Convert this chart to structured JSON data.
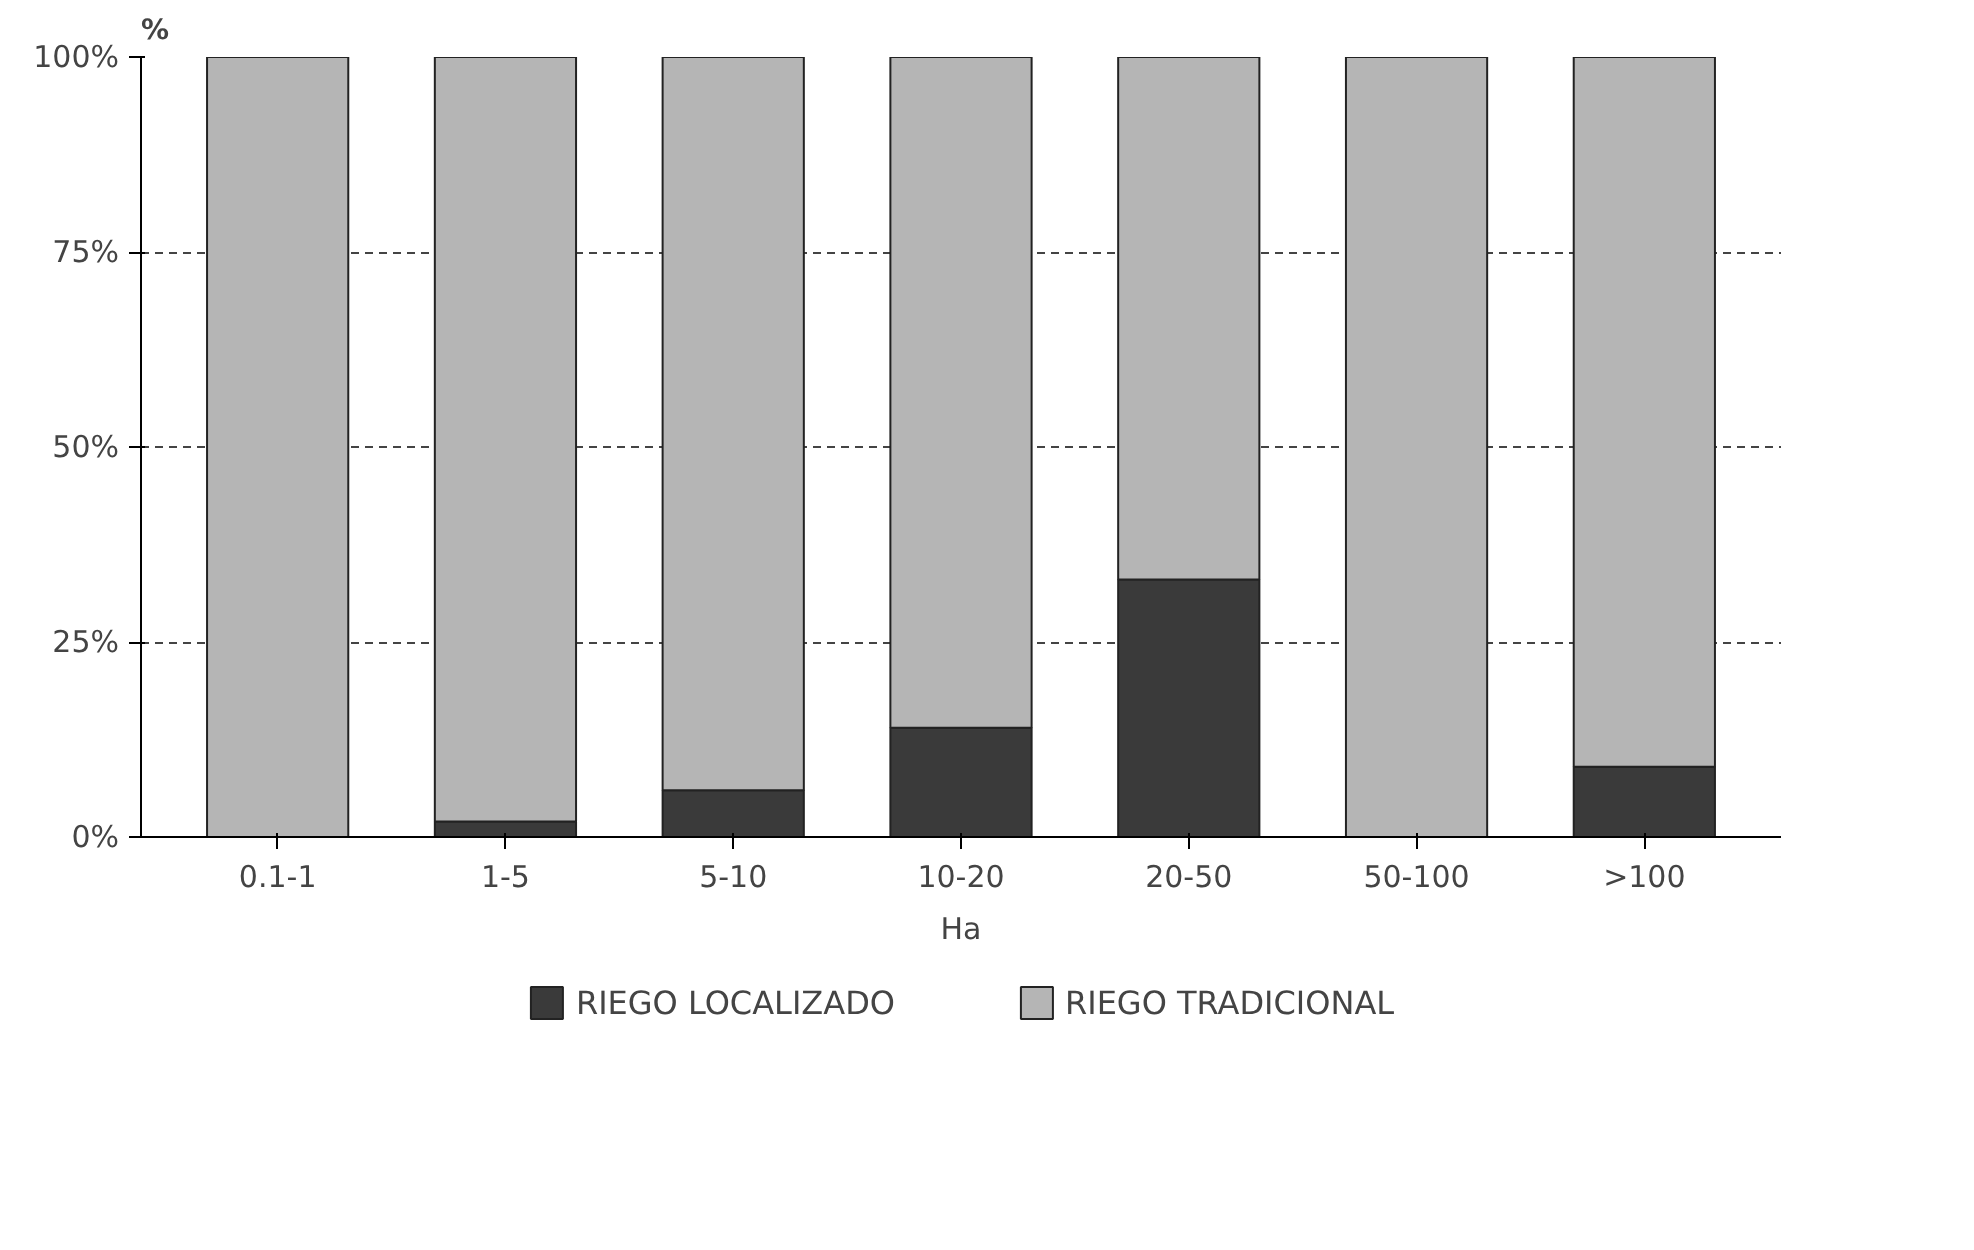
{
  "chart_data": {
    "type": "bar",
    "stacked": true,
    "ylabel": "%",
    "xlabel": "Ha",
    "categories": [
      "0.1-1",
      "1-5",
      "5-10",
      "10-20",
      "20-50",
      "50-100",
      ">100"
    ],
    "series": [
      {
        "name": "RIEGO LOCALIZADO",
        "color": "#3a3a3a",
        "values": [
          0,
          2,
          6,
          14,
          33,
          0,
          9
        ]
      },
      {
        "name": "RIEGO TRADICIONAL",
        "color": "#b5b5b5",
        "values": [
          100,
          98,
          94,
          86,
          67,
          100,
          91
        ]
      }
    ],
    "ylim": [
      0,
      100
    ],
    "yticks": [
      {
        "value": 0,
        "label": "0%"
      },
      {
        "value": 25,
        "label": "25%"
      },
      {
        "value": 50,
        "label": "50%"
      },
      {
        "value": 75,
        "label": "75%"
      },
      {
        "value": 100,
        "label": "100%"
      }
    ],
    "grid": "y",
    "legend": "bottom"
  }
}
